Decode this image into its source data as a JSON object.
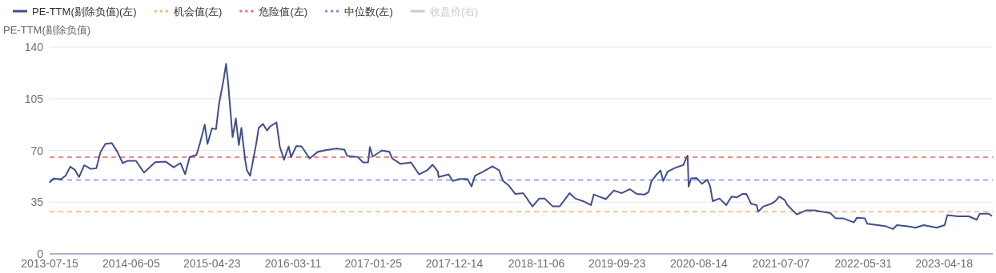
{
  "chart_data": {
    "type": "line",
    "ylabel": "PE-TTM(剔除负值)",
    "xlim": [
      "2013-07-15",
      "2023-10-29"
    ],
    "xticks": [
      "2013-07-15",
      "2014-06-05",
      "2015-04-23",
      "2016-03-11",
      "2017-01-25",
      "2017-12-14",
      "2018-11-06",
      "2019-09-23",
      "2020-08-14",
      "2021-07-07",
      "2022-05-31",
      "2023-04-18"
    ],
    "ylim": [
      0,
      140
    ],
    "yticks": [
      0,
      35,
      70,
      105,
      140
    ],
    "grid": "y",
    "legend": "top left",
    "line_style": "solid",
    "series": [
      {
        "name": "PE-TTM(剔除负值)(左)",
        "color": "#424d8c",
        "x": [
          "2013-07-16",
          "2013-07-30",
          "2013-08-29",
          "2013-09-17",
          "2013-10-05",
          "2013-10-23",
          "2013-11-09",
          "2013-11-30",
          "2013-12-26",
          "2014-01-17",
          "2014-02-03",
          "2014-02-22",
          "2014-03-20",
          "2014-04-11",
          "2014-05-02",
          "2014-05-23",
          "2014-06-24",
          "2014-07-26",
          "2014-09-08",
          "2014-10-20",
          "2014-11-21",
          "2014-12-18",
          "2015-01-06",
          "2015-01-24",
          "2015-02-20",
          "2015-03-06",
          "2015-03-25",
          "2015-04-05",
          "2015-04-23",
          "2015-05-09",
          "2015-05-21",
          "2015-06-02",
          "2015-06-08",
          "2015-06-18",
          "2015-06-26",
          "2015-07-06",
          "2015-07-14",
          "2015-07-27",
          "2015-08-08",
          "2015-08-18",
          "2015-09-02",
          "2015-09-09",
          "2015-09-22",
          "2015-10-03",
          "2015-10-16",
          "2015-10-26",
          "2015-11-12",
          "2015-11-28",
          "2015-12-10",
          "2016-01-05",
          "2016-01-18",
          "2016-02-04",
          "2016-02-22",
          "2016-03-03",
          "2016-03-24",
          "2016-04-14",
          "2016-05-16",
          "2016-06-17",
          "2016-07-13",
          "2016-09-01",
          "2016-10-02",
          "2016-10-12",
          "2016-11-24",
          "2016-12-15",
          "2017-01-04",
          "2017-01-11",
          "2017-01-22",
          "2017-02-28",
          "2017-03-30",
          "2017-04-10",
          "2017-05-12",
          "2017-06-24",
          "2017-07-26",
          "2017-08-27",
          "2017-09-18",
          "2017-10-09",
          "2017-10-12",
          "2017-11-21",
          "2017-12-07",
          "2018-01-03",
          "2018-02-04",
          "2018-02-20",
          "2018-03-06",
          "2018-04-07",
          "2018-05-14",
          "2018-06-10",
          "2018-06-26",
          "2018-07-17",
          "2018-08-13",
          "2018-09-14",
          "2018-10-21",
          "2018-11-17",
          "2018-12-08",
          "2019-01-10",
          "2019-02-06",
          "2019-03-18",
          "2019-04-09",
          "2019-05-10",
          "2019-06-11",
          "2019-06-22",
          "2019-08-09",
          "2019-09-10",
          "2019-10-12",
          "2019-11-13",
          "2019-12-10",
          "2020-01-11",
          "2020-01-27",
          "2020-02-07",
          "2020-02-28",
          "2020-03-14",
          "2020-03-25",
          "2020-04-11",
          "2020-05-12",
          "2020-06-13",
          "2020-06-26",
          "2020-06-30",
          "2020-07-04",
          "2020-07-14",
          "2020-08-05",
          "2020-08-26",
          "2020-09-17",
          "2020-09-28",
          "2020-10-08",
          "2020-11-04",
          "2020-12-01",
          "2020-12-22",
          "2021-01-13",
          "2021-02-04",
          "2021-02-19",
          "2021-03-10",
          "2021-04-01",
          "2021-04-07",
          "2021-04-28",
          "2021-05-29",
          "2021-06-15",
          "2021-06-30",
          "2021-07-21",
          "2021-08-02",
          "2021-08-23",
          "2021-09-08",
          "2021-10-15",
          "2021-11-17",
          "2021-12-18",
          "2022-01-20",
          "2022-02-10",
          "2022-03-12",
          "2022-04-24",
          "2022-05-05",
          "2022-06-06",
          "2022-06-16",
          "2022-07-28",
          "2022-08-30",
          "2022-09-26",
          "2022-10-12",
          "2022-11-24",
          "2022-12-25",
          "2023-01-27",
          "2023-03-19",
          "2023-04-20",
          "2023-05-01",
          "2023-06-13",
          "2023-07-25",
          "2023-08-26",
          "2023-09-07",
          "2023-10-13",
          "2023-10-24"
        ],
        "values": [
          48.5,
          51,
          50.5,
          53,
          59,
          57,
          52,
          60,
          57.5,
          58,
          69,
          74.5,
          75,
          69,
          61.5,
          63,
          63,
          55,
          62,
          62.5,
          58.6,
          61.5,
          54,
          65.5,
          67,
          75,
          87.5,
          74.5,
          85,
          84.4,
          101.6,
          112.4,
          117.8,
          128.6,
          116,
          95.3,
          79,
          91.6,
          73.6,
          85.3,
          63.7,
          56.5,
          52.9,
          62.8,
          74.5,
          85.3,
          88,
          83.5,
          86.2,
          89,
          72.7,
          63.7,
          72.7,
          65.5,
          73,
          72.7,
          64.6,
          69,
          70,
          71.3,
          70.5,
          66.4,
          65.5,
          61.9,
          61.9,
          72.3,
          65.8,
          70,
          69,
          64.6,
          61,
          61.9,
          53.8,
          56.5,
          60.4,
          55.6,
          52,
          53.8,
          49.3,
          50.7,
          50.7,
          45.6,
          52.9,
          55.6,
          59.2,
          56.5,
          49.3,
          46.5,
          40.6,
          41.1,
          32.1,
          37.5,
          37.5,
          32.1,
          32.1,
          41.1,
          37.5,
          35.7,
          33,
          40.2,
          37,
          42.9,
          41.1,
          43.8,
          40.6,
          40.2,
          42,
          49.3,
          53.8,
          56.5,
          49.3,
          55.6,
          58.3,
          60.1,
          65.5,
          66.4,
          45.6,
          51.1,
          51.4,
          47.4,
          50.2,
          45.6,
          35.7,
          37.5,
          33,
          38.8,
          38.3,
          40.6,
          40.6,
          33.9,
          33,
          28.5,
          32.1,
          33.9,
          35.7,
          38.8,
          36.6,
          33,
          29.4,
          26.7,
          29.4,
          29.4,
          28.5,
          27.6,
          24,
          24,
          21.3,
          24.4,
          24,
          20.4,
          19.5,
          18.6,
          16.8,
          19.5,
          18.6,
          17.7,
          19.5,
          17.7,
          19.5,
          26.2,
          25.4,
          25.4,
          23.1,
          27.2,
          27.2,
          25.8
        ]
      },
      {
        "name": "收盘价(右)",
        "color": "#cccccc"
      }
    ],
    "ref_lines": [
      {
        "axis": "y",
        "value": 28.5,
        "label": "机会值(左)",
        "color": "#f9b171",
        "line_style": "dashed"
      },
      {
        "axis": "y",
        "value": 65.5,
        "label": "危险值(左)",
        "color": "#f56c6c",
        "line_style": "dashed"
      },
      {
        "axis": "y",
        "value": 50,
        "label": "中位数(左)",
        "color": "#7a8cf0",
        "line_style": "dashed"
      }
    ]
  }
}
